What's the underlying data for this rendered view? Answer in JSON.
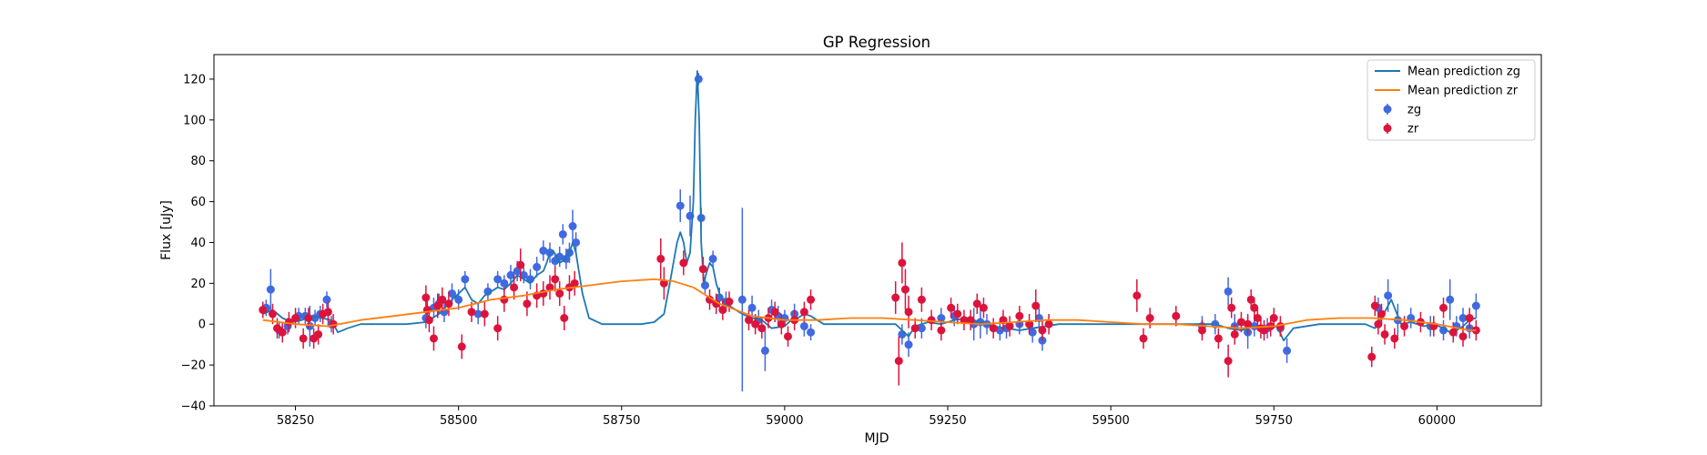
{
  "chart_data": {
    "type": "scatter",
    "title": "GP Regression",
    "xlabel": "MJD",
    "ylabel": "Flux [uJy]",
    "xlim": [
      58125,
      60160
    ],
    "ylim": [
      -40,
      132
    ],
    "xticks": [
      58250,
      58500,
      58750,
      59000,
      59250,
      59500,
      59750,
      60000
    ],
    "yticks": [
      -40,
      -20,
      0,
      20,
      40,
      60,
      80,
      100,
      120
    ],
    "grid": false,
    "legend_position": "top-right",
    "series": [
      {
        "name": "Mean prediction zg",
        "kind": "line",
        "color": "#1f77b4",
        "x": [
          58200,
          58215,
          58230,
          58245,
          58260,
          58275,
          58290,
          58305,
          58315,
          58330,
          58350,
          58380,
          58420,
          58450,
          58470,
          58490,
          58500,
          58510,
          58520,
          58530,
          58540,
          58550,
          58560,
          58570,
          58580,
          58590,
          58600,
          58610,
          58620,
          58630,
          58635,
          58640,
          58645,
          58650,
          58655,
          58660,
          58665,
          58670,
          58675,
          58680,
          58690,
          58700,
          58720,
          58750,
          58780,
          58800,
          58815,
          58825,
          58835,
          58840,
          58845,
          58850,
          58855,
          58860,
          58863,
          58866,
          58869,
          58872,
          58876,
          58880,
          58885,
          58890,
          58895,
          58900,
          58910,
          58920,
          58935,
          58950,
          58965,
          58980,
          59000,
          59010,
          59020,
          59030,
          59040,
          59060,
          59100,
          59140,
          59170,
          59180,
          59190,
          59200,
          59220,
          59240,
          59260,
          59280,
          59300,
          59320,
          59340,
          59360,
          59380,
          59400,
          59420,
          59460,
          59500,
          59550,
          59600,
          59640,
          59660,
          59680,
          59700,
          59720,
          59740,
          59755,
          59765,
          59780,
          59820,
          59860,
          59890,
          59905,
          59915,
          59930,
          59945,
          59960,
          59980,
          59995,
          60010,
          60020,
          60030,
          60040,
          60050,
          60060
        ],
        "y": [
          5,
          7,
          3,
          1,
          2,
          4,
          3,
          2,
          -4,
          -2,
          0,
          0,
          0,
          1,
          5,
          12,
          15,
          18,
          12,
          10,
          14,
          16,
          18,
          17,
          20,
          24,
          22,
          20,
          24,
          26,
          30,
          35,
          36,
          33,
          30,
          31,
          33,
          35,
          40,
          35,
          15,
          3,
          0,
          0,
          0,
          1,
          5,
          22,
          40,
          45,
          40,
          30,
          35,
          60,
          100,
          124,
          100,
          40,
          20,
          25,
          30,
          28,
          20,
          15,
          10,
          8,
          5,
          3,
          2,
          -2,
          -1,
          2,
          3,
          5,
          4,
          0,
          0,
          0,
          0,
          -3,
          -6,
          -1,
          1,
          0,
          2,
          3,
          1,
          -1,
          -2,
          -3,
          -2,
          -1,
          0,
          0,
          0,
          0,
          0,
          0,
          0,
          -2,
          -3,
          -1,
          -2,
          -1,
          -8,
          -2,
          0,
          0,
          0,
          -2,
          3,
          12,
          0,
          1,
          -1,
          0,
          -2,
          -4,
          -3,
          -1,
          2,
          3
        ]
      },
      {
        "name": "Mean prediction zr",
        "kind": "line",
        "color": "#ff7f0e",
        "x": [
          58200,
          58250,
          58300,
          58350,
          58400,
          58450,
          58500,
          58550,
          58600,
          58650,
          58700,
          58750,
          58800,
          58830,
          58860,
          58900,
          58950,
          59000,
          59050,
          59100,
          59150,
          59200,
          59250,
          59300,
          59350,
          59400,
          59450,
          59500,
          59550,
          59600,
          59650,
          59700,
          59750,
          59800,
          59850,
          59900,
          59950,
          60000,
          60050,
          60060
        ],
        "y": [
          2,
          0,
          -1,
          2,
          4,
          6,
          8,
          12,
          14,
          17,
          19,
          21,
          22,
          21,
          18,
          10,
          4,
          2,
          2,
          3,
          3,
          2,
          1,
          0,
          1,
          2,
          2,
          1,
          0,
          0,
          -1,
          -2,
          -1,
          2,
          3,
          3,
          2,
          0,
          -3,
          -3
        ]
      },
      {
        "name": "zg",
        "kind": "errorbar",
        "color": "#4169e1",
        "x": [
          58205,
          58212,
          58225,
          58238,
          58255,
          58265,
          58272,
          58280,
          58288,
          58298,
          58305,
          58450,
          58462,
          58470,
          58478,
          58490,
          58500,
          58510,
          58530,
          58545,
          58560,
          58570,
          58580,
          58590,
          58600,
          58610,
          58620,
          58630,
          58640,
          58648,
          58655,
          58660,
          58665,
          58670,
          58675,
          58680,
          58840,
          58855,
          58868,
          58872,
          58878,
          58890,
          58900,
          58910,
          58935,
          58950,
          58960,
          58970,
          58980,
          58990,
          59000,
          59015,
          59030,
          59040,
          59180,
          59190,
          59210,
          59240,
          59260,
          59290,
          59300,
          59310,
          59330,
          59340,
          59360,
          59380,
          59390,
          59395,
          59640,
          59660,
          59680,
          59690,
          59710,
          59720,
          59740,
          59760,
          59770,
          59910,
          59925,
          59940,
          59960,
          59990,
          60010,
          60020,
          60030,
          60040,
          60050,
          60060
        ],
        "y": [
          8,
          17,
          -3,
          -1,
          4,
          4,
          -1,
          3,
          5,
          12,
          0,
          3,
          8,
          10,
          6,
          15,
          12,
          22,
          5,
          16,
          22,
          20,
          24,
          26,
          24,
          22,
          28,
          36,
          35,
          31,
          33,
          44,
          32,
          35,
          48,
          40,
          58,
          53,
          120,
          52,
          19,
          32,
          13,
          11,
          12,
          8,
          2,
          -13,
          7,
          4,
          3,
          5,
          -1,
          -4,
          -5,
          -10,
          -2,
          3,
          4,
          0,
          1,
          0,
          -3,
          -2,
          0,
          -4,
          3,
          -8,
          -1,
          0,
          16,
          -1,
          -4,
          -1,
          -2,
          -2,
          -13,
          8,
          14,
          2,
          3,
          -1,
          -3,
          12,
          -1,
          3,
          -2,
          9
        ],
        "yerr": [
          4,
          10,
          4,
          4,
          4,
          4,
          10,
          4,
          4,
          4,
          4,
          5,
          5,
          5,
          5,
          5,
          5,
          4,
          5,
          4,
          4,
          4,
          5,
          5,
          4,
          5,
          5,
          5,
          5,
          4,
          5,
          5,
          5,
          5,
          8,
          5,
          8,
          10,
          3,
          5,
          4,
          4,
          5,
          5,
          45,
          6,
          5,
          10,
          5,
          5,
          4,
          5,
          5,
          4,
          5,
          6,
          5,
          5,
          5,
          8,
          8,
          5,
          5,
          5,
          5,
          5,
          5,
          5,
          5,
          5,
          7,
          6,
          8,
          5,
          5,
          4,
          6,
          5,
          8,
          8,
          5,
          5,
          5,
          10,
          5,
          5,
          5,
          6
        ]
      },
      {
        "name": "zr",
        "kind": "errorbar",
        "color": "#dc143c",
        "x": [
          58200,
          58215,
          58222,
          58230,
          58240,
          58250,
          58262,
          58270,
          58278,
          58285,
          58292,
          58300,
          58308,
          58450,
          58452,
          58455,
          58462,
          58468,
          58475,
          58485,
          58505,
          58520,
          58540,
          58560,
          58570,
          58585,
          58595,
          58605,
          58620,
          58630,
          58640,
          58648,
          58655,
          58662,
          58670,
          58678,
          58810,
          58815,
          58845,
          58875,
          58885,
          58895,
          58905,
          58915,
          58945,
          58955,
          58965,
          58975,
          58985,
          58995,
          59005,
          59015,
          59030,
          59040,
          59170,
          59175,
          59180,
          59185,
          59190,
          59200,
          59210,
          59225,
          59240,
          59255,
          59265,
          59275,
          59285,
          59295,
          59305,
          59320,
          59335,
          59345,
          59360,
          59375,
          59385,
          59395,
          59405,
          59540,
          59550,
          59560,
          59600,
          59640,
          59665,
          59680,
          59685,
          59690,
          59700,
          59710,
          59715,
          59720,
          59725,
          59730,
          59735,
          59745,
          59750,
          59760,
          59900,
          59905,
          59910,
          59915,
          59920,
          59935,
          59950,
          59975,
          59995,
          60010,
          60025,
          60040,
          60050,
          60060
        ],
        "y": [
          7,
          5,
          -2,
          -4,
          1,
          3,
          -7,
          3,
          -7,
          -5,
          5,
          6,
          0,
          13,
          7,
          2,
          -7,
          9,
          12,
          10,
          -11,
          6,
          5,
          -2,
          12,
          18,
          29,
          10,
          14,
          15,
          18,
          22,
          15,
          3,
          18,
          20,
          32,
          20,
          30,
          27,
          12,
          10,
          7,
          11,
          2,
          0,
          -2,
          3,
          6,
          0,
          -6,
          2,
          6,
          12,
          13,
          -18,
          30,
          17,
          6,
          -2,
          12,
          2,
          -3,
          8,
          5,
          2,
          2,
          10,
          8,
          -2,
          2,
          -1,
          4,
          0,
          9,
          -3,
          0,
          14,
          -7,
          3,
          4,
          -3,
          -7,
          -18,
          8,
          -5,
          1,
          0,
          12,
          8,
          3,
          -2,
          -3,
          -1,
          3,
          -1,
          -16,
          9,
          0,
          5,
          -5,
          -7,
          -1,
          1,
          -1,
          8,
          -4,
          -6,
          3,
          -3
        ],
        "yerr": [
          4,
          5,
          5,
          5,
          5,
          5,
          5,
          5,
          5,
          5,
          5,
          5,
          5,
          6,
          6,
          6,
          6,
          6,
          6,
          6,
          6,
          5,
          6,
          6,
          6,
          6,
          8,
          6,
          6,
          6,
          6,
          6,
          6,
          6,
          6,
          6,
          10,
          8,
          6,
          6,
          5,
          5,
          5,
          5,
          5,
          5,
          5,
          5,
          5,
          5,
          5,
          5,
          5,
          5,
          8,
          12,
          10,
          10,
          8,
          5,
          6,
          5,
          5,
          5,
          5,
          5,
          5,
          5,
          5,
          5,
          5,
          5,
          5,
          5,
          8,
          5,
          5,
          8,
          5,
          5,
          5,
          5,
          5,
          8,
          5,
          5,
          5,
          5,
          5,
          5,
          5,
          5,
          5,
          5,
          5,
          5,
          5,
          5,
          5,
          5,
          5,
          5,
          5,
          5,
          5,
          5,
          5,
          5,
          5,
          5
        ]
      }
    ]
  }
}
